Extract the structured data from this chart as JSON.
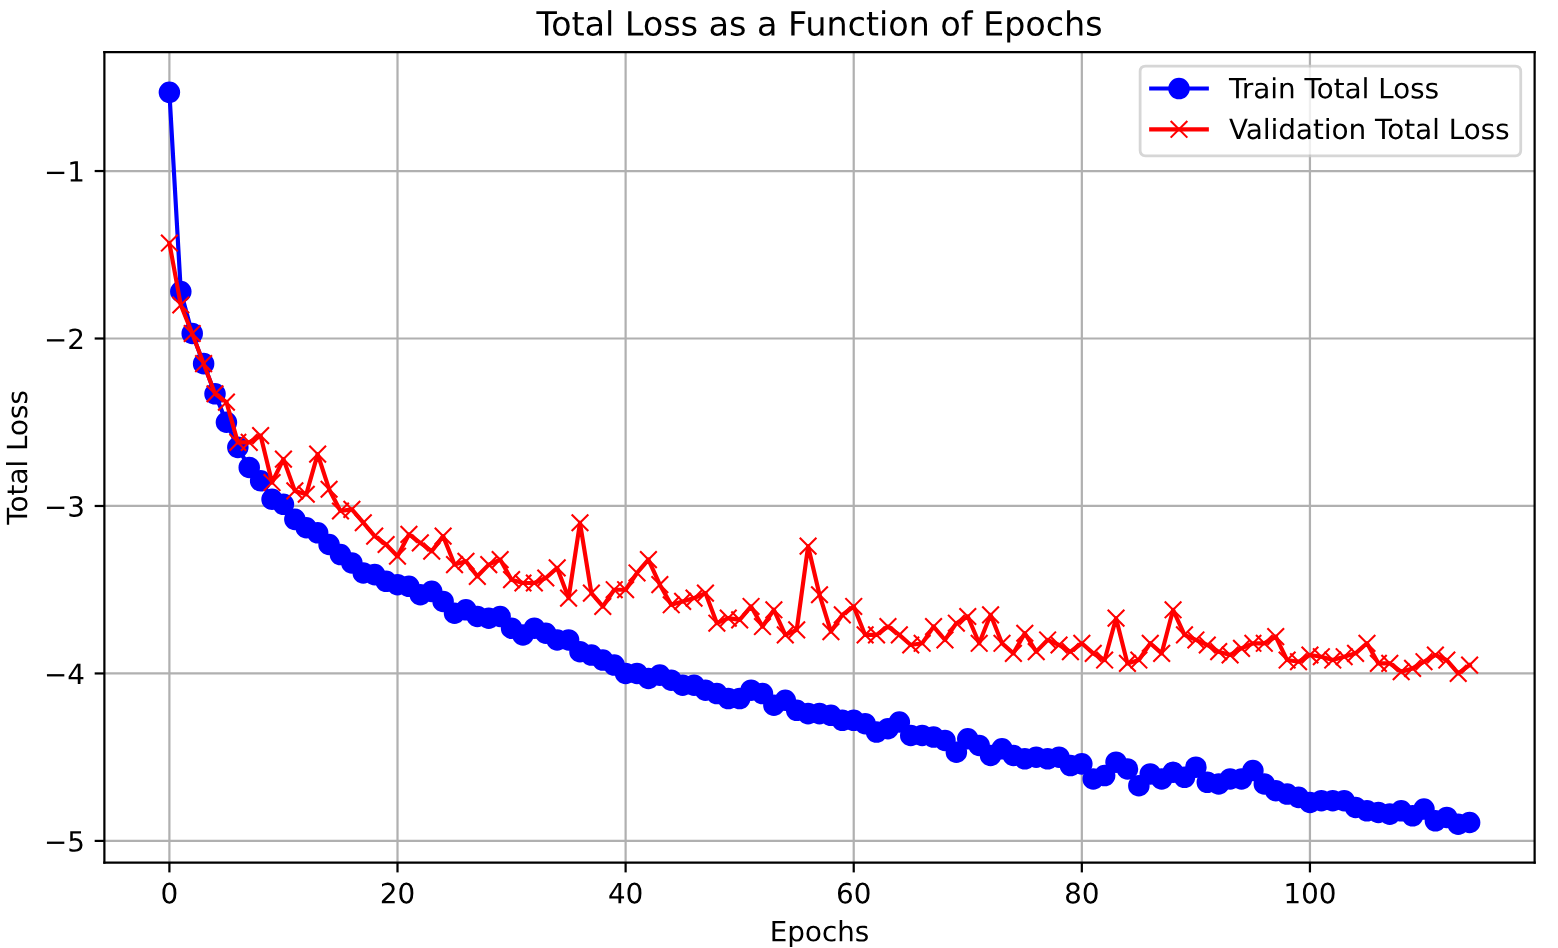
{
  "chart_data": {
    "type": "line",
    "title": "Total Loss as a Function of Epochs",
    "xlabel": "Epochs",
    "ylabel": "Total Loss",
    "x": [
      0,
      1,
      2,
      3,
      4,
      5,
      6,
      7,
      8,
      9,
      10,
      11,
      12,
      13,
      14,
      15,
      16,
      17,
      18,
      19,
      20,
      21,
      22,
      23,
      24,
      25,
      26,
      27,
      28,
      29,
      30,
      31,
      32,
      33,
      34,
      35,
      36,
      37,
      38,
      39,
      40,
      41,
      42,
      43,
      44,
      45,
      46,
      47,
      48,
      49,
      50,
      51,
      52,
      53,
      54,
      55,
      56,
      57,
      58,
      59,
      60,
      61,
      62,
      63,
      64,
      65,
      66,
      67,
      68,
      69,
      70,
      71,
      72,
      73,
      74,
      75,
      76,
      77,
      78,
      79,
      80,
      81,
      82,
      83,
      84,
      85,
      86,
      87,
      88,
      89,
      90,
      91,
      92,
      93,
      94,
      95,
      96,
      97,
      98,
      99,
      100,
      101,
      102,
      103,
      104,
      105,
      106,
      107,
      108,
      109,
      110,
      111,
      112,
      113,
      114
    ],
    "series": [
      {
        "name": "Train Total Loss",
        "color": "#0000ff",
        "marker": "circle",
        "values": [
          -0.53,
          -1.72,
          -1.97,
          -2.15,
          -2.33,
          -2.5,
          -2.65,
          -2.77,
          -2.85,
          -2.96,
          -2.99,
          -3.08,
          -3.13,
          -3.16,
          -3.23,
          -3.29,
          -3.34,
          -3.4,
          -3.41,
          -3.45,
          -3.47,
          -3.48,
          -3.53,
          -3.51,
          -3.57,
          -3.64,
          -3.62,
          -3.66,
          -3.67,
          -3.66,
          -3.73,
          -3.77,
          -3.73,
          -3.76,
          -3.8,
          -3.8,
          -3.87,
          -3.89,
          -3.92,
          -3.95,
          -4.0,
          -4.0,
          -4.03,
          -4.01,
          -4.04,
          -4.07,
          -4.07,
          -4.1,
          -4.12,
          -4.15,
          -4.15,
          -4.1,
          -4.12,
          -4.19,
          -4.16,
          -4.22,
          -4.24,
          -4.24,
          -4.25,
          -4.28,
          -4.28,
          -4.3,
          -4.35,
          -4.33,
          -4.29,
          -4.37,
          -4.37,
          -4.38,
          -4.4,
          -4.47,
          -4.39,
          -4.43,
          -4.49,
          -4.45,
          -4.49,
          -4.51,
          -4.5,
          -4.51,
          -4.5,
          -4.55,
          -4.54,
          -4.63,
          -4.61,
          -4.53,
          -4.57,
          -4.67,
          -4.6,
          -4.63,
          -4.59,
          -4.62,
          -4.56,
          -4.65,
          -4.66,
          -4.63,
          -4.63,
          -4.58,
          -4.66,
          -4.7,
          -4.72,
          -4.74,
          -4.77,
          -4.76,
          -4.76,
          -4.76,
          -4.8,
          -4.82,
          -4.83,
          -4.84,
          -4.82,
          -4.85,
          -4.81,
          -4.88,
          -4.86,
          -4.9,
          -4.89
        ]
      },
      {
        "name": "Validation Total Loss",
        "color": "#ff0000",
        "marker": "cross",
        "values": [
          -1.43,
          -1.8,
          -1.97,
          -2.15,
          -2.33,
          -2.38,
          -2.62,
          -2.62,
          -2.58,
          -2.86,
          -2.72,
          -2.91,
          -2.93,
          -2.69,
          -2.9,
          -3.03,
          -3.02,
          -3.1,
          -3.18,
          -3.23,
          -3.3,
          -3.17,
          -3.22,
          -3.27,
          -3.18,
          -3.35,
          -3.33,
          -3.42,
          -3.35,
          -3.32,
          -3.44,
          -3.46,
          -3.46,
          -3.43,
          -3.37,
          -3.55,
          -3.1,
          -3.52,
          -3.6,
          -3.5,
          -3.5,
          -3.4,
          -3.32,
          -3.47,
          -3.59,
          -3.57,
          -3.55,
          -3.52,
          -3.7,
          -3.67,
          -3.68,
          -3.6,
          -3.72,
          -3.62,
          -3.77,
          -3.74,
          -3.24,
          -3.53,
          -3.75,
          -3.65,
          -3.6,
          -3.77,
          -3.77,
          -3.72,
          -3.77,
          -3.83,
          -3.82,
          -3.72,
          -3.8,
          -3.7,
          -3.66,
          -3.82,
          -3.65,
          -3.82,
          -3.88,
          -3.76,
          -3.87,
          -3.8,
          -3.83,
          -3.87,
          -3.82,
          -3.88,
          -3.92,
          -3.67,
          -3.94,
          -3.92,
          -3.82,
          -3.88,
          -3.62,
          -3.77,
          -3.8,
          -3.83,
          -3.87,
          -3.89,
          -3.85,
          -3.82,
          -3.82,
          -3.78,
          -3.92,
          -3.93,
          -3.89,
          -3.9,
          -3.92,
          -3.9,
          -3.88,
          -3.82,
          -3.94,
          -3.94,
          -3.99,
          -3.97,
          -3.93,
          -3.89,
          -3.92,
          -4.0,
          -3.95
        ]
      }
    ],
    "xlim": [
      -5.7,
      119.7
    ],
    "ylim": [
      -5.13,
      -0.29
    ],
    "xticks": [
      0,
      20,
      40,
      60,
      80,
      100
    ],
    "yticks": [
      {
        "value": -1,
        "label": "−1"
      },
      {
        "value": -2,
        "label": "−2"
      },
      {
        "value": -3,
        "label": "−3"
      },
      {
        "value": -4,
        "label": "−4"
      },
      {
        "value": -5,
        "label": "−5"
      }
    ],
    "grid": true,
    "legend": "top right",
    "line_style": "solid"
  }
}
